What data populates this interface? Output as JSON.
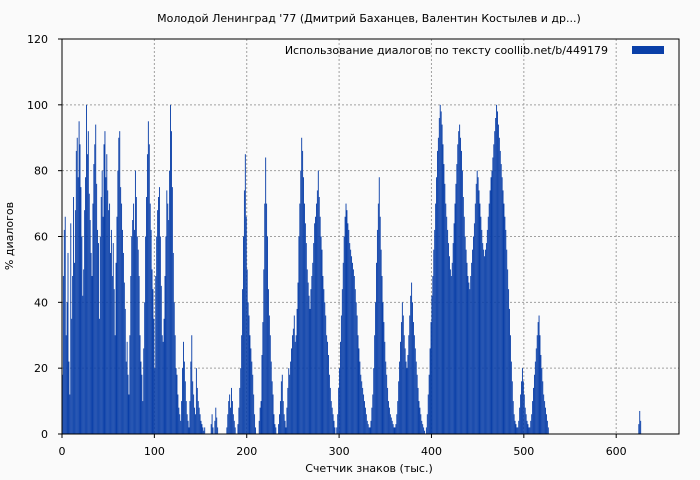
{
  "chart_data": {
    "type": "bar",
    "title": "Молодой Ленинград '77 (Дмитрий Баханцев, Валентин Костылев и др...)",
    "xlabel": "Счетчик знаков (тыс.)",
    "ylabel": "% диалогов",
    "xlim": [
      0,
      668
    ],
    "ylim": [
      0,
      120
    ],
    "xticks": [
      "0",
      "100",
      "200",
      "300",
      "400",
      "500",
      "600"
    ],
    "yticks": [
      "0",
      "20",
      "40",
      "60",
      "80",
      "100",
      "120"
    ],
    "grid": true,
    "legend_position": "top-right",
    "color": "#0a3fa8",
    "series": [
      {
        "name": "Использование диалогов по тексту  coollib.net/b/449179",
        "x_step": 1,
        "values": [
          18,
          48,
          62,
          66,
          30,
          40,
          55,
          22,
          12,
          64,
          35,
          48,
          72,
          52,
          68,
          86,
          90,
          78,
          95,
          88,
          75,
          60,
          42,
          50,
          68,
          78,
          100,
          85,
          92,
          73,
          65,
          55,
          48,
          70,
          82,
          88,
          94,
          76,
          62,
          58,
          35,
          60,
          72,
          80,
          66,
          88,
          92,
          78,
          85,
          74,
          68,
          70,
          55,
          62,
          48,
          58,
          44,
          30,
          52,
          66,
          80,
          90,
          92,
          75,
          70,
          62,
          55,
          46,
          38,
          22,
          28,
          18,
          12,
          30,
          48,
          60,
          65,
          70,
          62,
          80,
          72,
          60,
          56,
          48,
          30,
          22,
          18,
          10,
          26,
          40,
          60,
          72,
          85,
          95,
          88,
          70,
          62,
          50,
          44,
          35,
          20,
          48,
          60,
          68,
          72,
          75,
          60,
          45,
          30,
          28,
          35,
          48,
          60,
          74,
          70,
          65,
          80,
          100,
          92,
          75,
          55,
          40,
          30,
          20,
          18,
          12,
          8,
          6,
          4,
          10,
          20,
          28,
          22,
          16,
          10,
          6,
          4,
          2,
          10,
          22,
          30,
          16,
          12,
          8,
          6,
          20,
          14,
          10,
          8,
          6,
          4,
          3,
          2,
          1,
          2,
          0,
          0,
          0,
          0,
          0,
          0,
          3,
          6,
          2,
          0,
          4,
          8,
          5,
          2,
          0,
          0,
          0,
          0,
          0,
          0,
          0,
          0,
          0,
          2,
          6,
          10,
          12,
          8,
          14,
          10,
          6,
          4,
          2,
          0,
          0,
          3,
          8,
          14,
          20,
          30,
          44,
          60,
          74,
          85,
          66,
          50,
          40,
          36,
          30,
          26,
          22,
          18,
          12,
          6,
          2,
          0,
          0,
          0,
          4,
          8,
          10,
          24,
          34,
          50,
          70,
          84,
          70,
          60,
          44,
          36,
          30,
          22,
          16,
          12,
          6,
          3,
          2,
          0,
          0,
          3,
          6,
          10,
          16,
          18,
          10,
          6,
          4,
          2,
          8,
          14,
          20,
          18,
          22,
          26,
          30,
          32,
          36,
          28,
          30,
          38,
          46,
          60,
          70,
          80,
          90,
          86,
          78,
          70,
          64,
          58,
          50,
          46,
          42,
          38,
          44,
          48,
          52,
          58,
          64,
          66,
          70,
          74,
          80,
          72,
          66,
          60,
          56,
          48,
          44,
          40,
          36,
          30,
          28,
          24,
          18,
          14,
          10,
          8,
          6,
          4,
          2,
          0,
          2,
          6,
          14,
          20,
          28,
          36,
          44,
          52,
          60,
          66,
          70,
          68,
          64,
          62,
          58,
          56,
          54,
          52,
          50,
          48,
          44,
          40,
          36,
          30,
          26,
          22,
          18,
          16,
          14,
          12,
          10,
          8,
          6,
          4,
          3,
          2,
          2,
          4,
          8,
          12,
          20,
          30,
          40,
          52,
          62,
          70,
          78,
          66,
          56,
          48,
          40,
          34,
          28,
          22,
          18,
          14,
          10,
          8,
          6,
          5,
          4,
          3,
          2,
          2,
          3,
          6,
          10,
          16,
          22,
          28,
          34,
          40,
          36,
          30,
          26,
          22,
          20,
          24,
          30,
          36,
          42,
          46,
          40,
          34,
          30,
          26,
          22,
          18,
          14,
          10,
          8,
          6,
          4,
          3,
          2,
          1,
          0,
          2,
          6,
          12,
          18,
          26,
          34,
          42,
          48,
          56,
          62,
          70,
          78,
          86,
          90,
          96,
          100,
          98,
          94,
          88,
          82,
          76,
          70,
          66,
          62,
          58,
          54,
          50,
          48,
          52,
          58,
          64,
          70,
          76,
          82,
          88,
          92,
          94,
          90,
          86,
          80,
          72,
          66,
          60,
          56,
          52,
          48,
          46,
          44,
          48,
          52,
          56,
          60,
          64,
          70,
          76,
          80,
          78,
          74,
          70,
          66,
          62,
          58,
          56,
          54,
          56,
          58,
          62,
          66,
          70,
          74,
          78,
          80,
          84,
          88,
          92,
          96,
          100,
          98,
          94,
          90,
          86,
          82,
          78,
          74,
          70,
          66,
          62,
          56,
          50,
          44,
          38,
          30,
          22,
          16,
          10,
          6,
          4,
          3,
          2,
          2,
          4,
          8,
          12,
          16,
          20,
          16,
          12,
          8,
          6,
          4,
          3,
          2,
          2,
          4,
          6,
          10,
          14,
          18,
          22,
          26,
          30,
          34,
          36,
          30,
          24,
          20,
          16,
          12,
          10,
          8,
          6,
          4,
          2,
          0,
          0,
          0,
          0,
          0,
          0,
          0,
          0,
          0,
          0,
          0,
          0,
          0,
          0,
          0,
          0,
          0,
          0,
          0,
          0,
          0,
          0,
          0,
          0,
          0,
          0,
          0,
          0,
          0,
          0,
          0,
          0,
          0,
          0,
          0,
          0,
          0,
          0,
          0,
          0,
          0,
          0,
          0,
          0,
          0,
          0,
          0,
          0,
          0,
          0,
          0,
          0,
          0,
          0,
          0,
          0,
          0,
          0,
          0,
          0,
          0,
          0,
          0,
          0,
          0,
          0,
          0,
          0,
          0,
          0,
          0,
          0,
          0,
          0,
          0,
          0,
          0,
          0,
          0,
          0,
          0,
          0,
          0,
          0,
          0,
          0,
          0,
          0,
          0,
          0,
          0,
          0,
          0,
          0,
          0,
          0,
          0,
          3,
          7,
          4
        ]
      }
    ]
  }
}
